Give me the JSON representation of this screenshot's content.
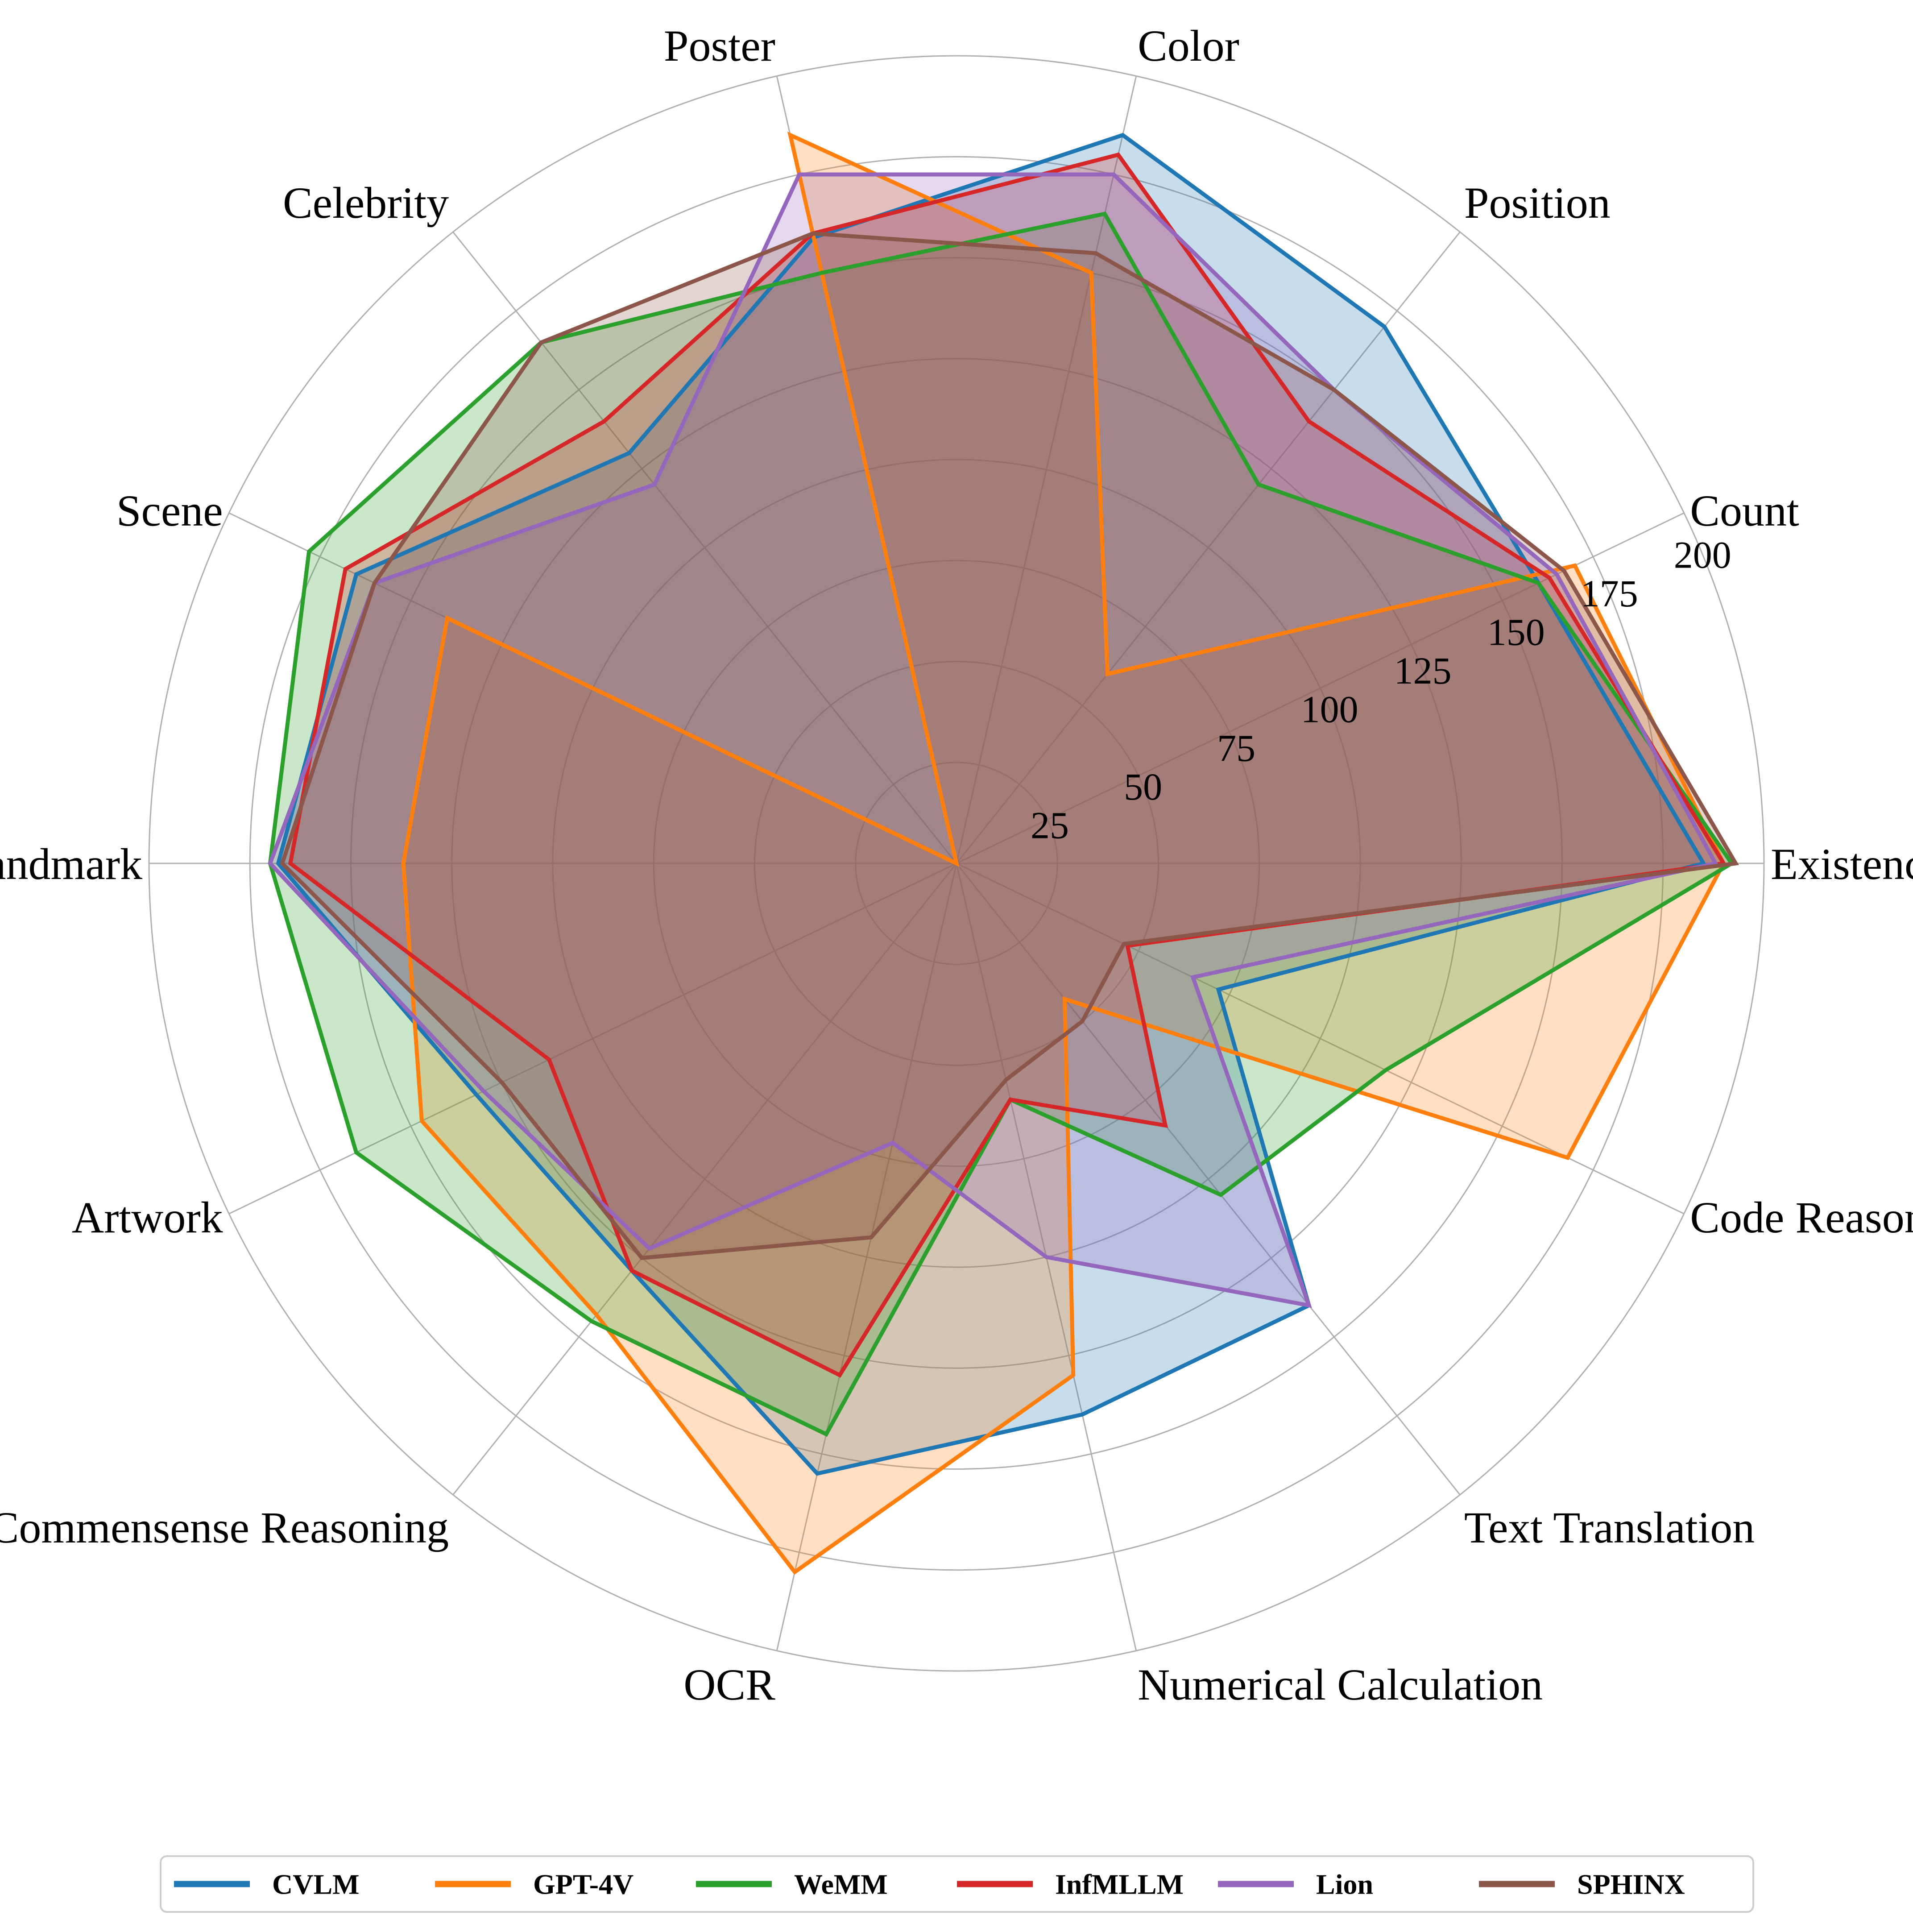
{
  "chart_data": {
    "type": "radar",
    "categories": [
      "Existence",
      "Count",
      "Position",
      "Color",
      "Poster",
      "Celebrity",
      "Scene",
      "Landmark",
      "Artwork",
      "Commensense Reasoning",
      "OCR",
      "Numerical Calculation",
      "Text Translation",
      "Code Reasoning"
    ],
    "rlim": [
      0,
      200
    ],
    "rticks": [
      25,
      50,
      75,
      100,
      125,
      150,
      175,
      200
    ],
    "grid": true,
    "legend": {
      "placement": "bottom"
    },
    "series": [
      {
        "name": "CVLM",
        "color": "#1f77b4",
        "values": [
          185,
          160,
          170,
          185,
          159,
          130,
          165,
          168,
          132,
          129,
          155,
          140,
          140,
          72
        ]
      },
      {
        "name": "GPT-4V",
        "color": "#ff7f0e",
        "values": [
          190,
          170,
          60,
          150,
          185,
          0,
          140,
          137,
          147,
          143,
          180,
          130,
          43,
          168
        ]
      },
      {
        "name": "WeMM",
        "color": "#2ca02c",
        "values": [
          192,
          160,
          120,
          165,
          150,
          165,
          178,
          170,
          165,
          145,
          145,
          60,
          105,
          118
        ]
      },
      {
        "name": "InfMLLM",
        "color": "#d62728",
        "values": [
          190,
          163,
          140,
          180,
          160,
          140,
          168,
          165,
          112,
          129,
          130,
          60,
          83,
          47
        ]
      },
      {
        "name": "Lion",
        "color": "#9467bd",
        "values": [
          188,
          165,
          150,
          175,
          175,
          120,
          160,
          170,
          130,
          122,
          71,
          100,
          140,
          65
        ]
      },
      {
        "name": "SPHINX",
        "color": "#8c564b",
        "values": [
          193,
          167,
          150,
          155,
          160,
          165,
          160,
          167,
          125,
          125,
          95,
          55,
          50,
          46
        ]
      }
    ]
  }
}
